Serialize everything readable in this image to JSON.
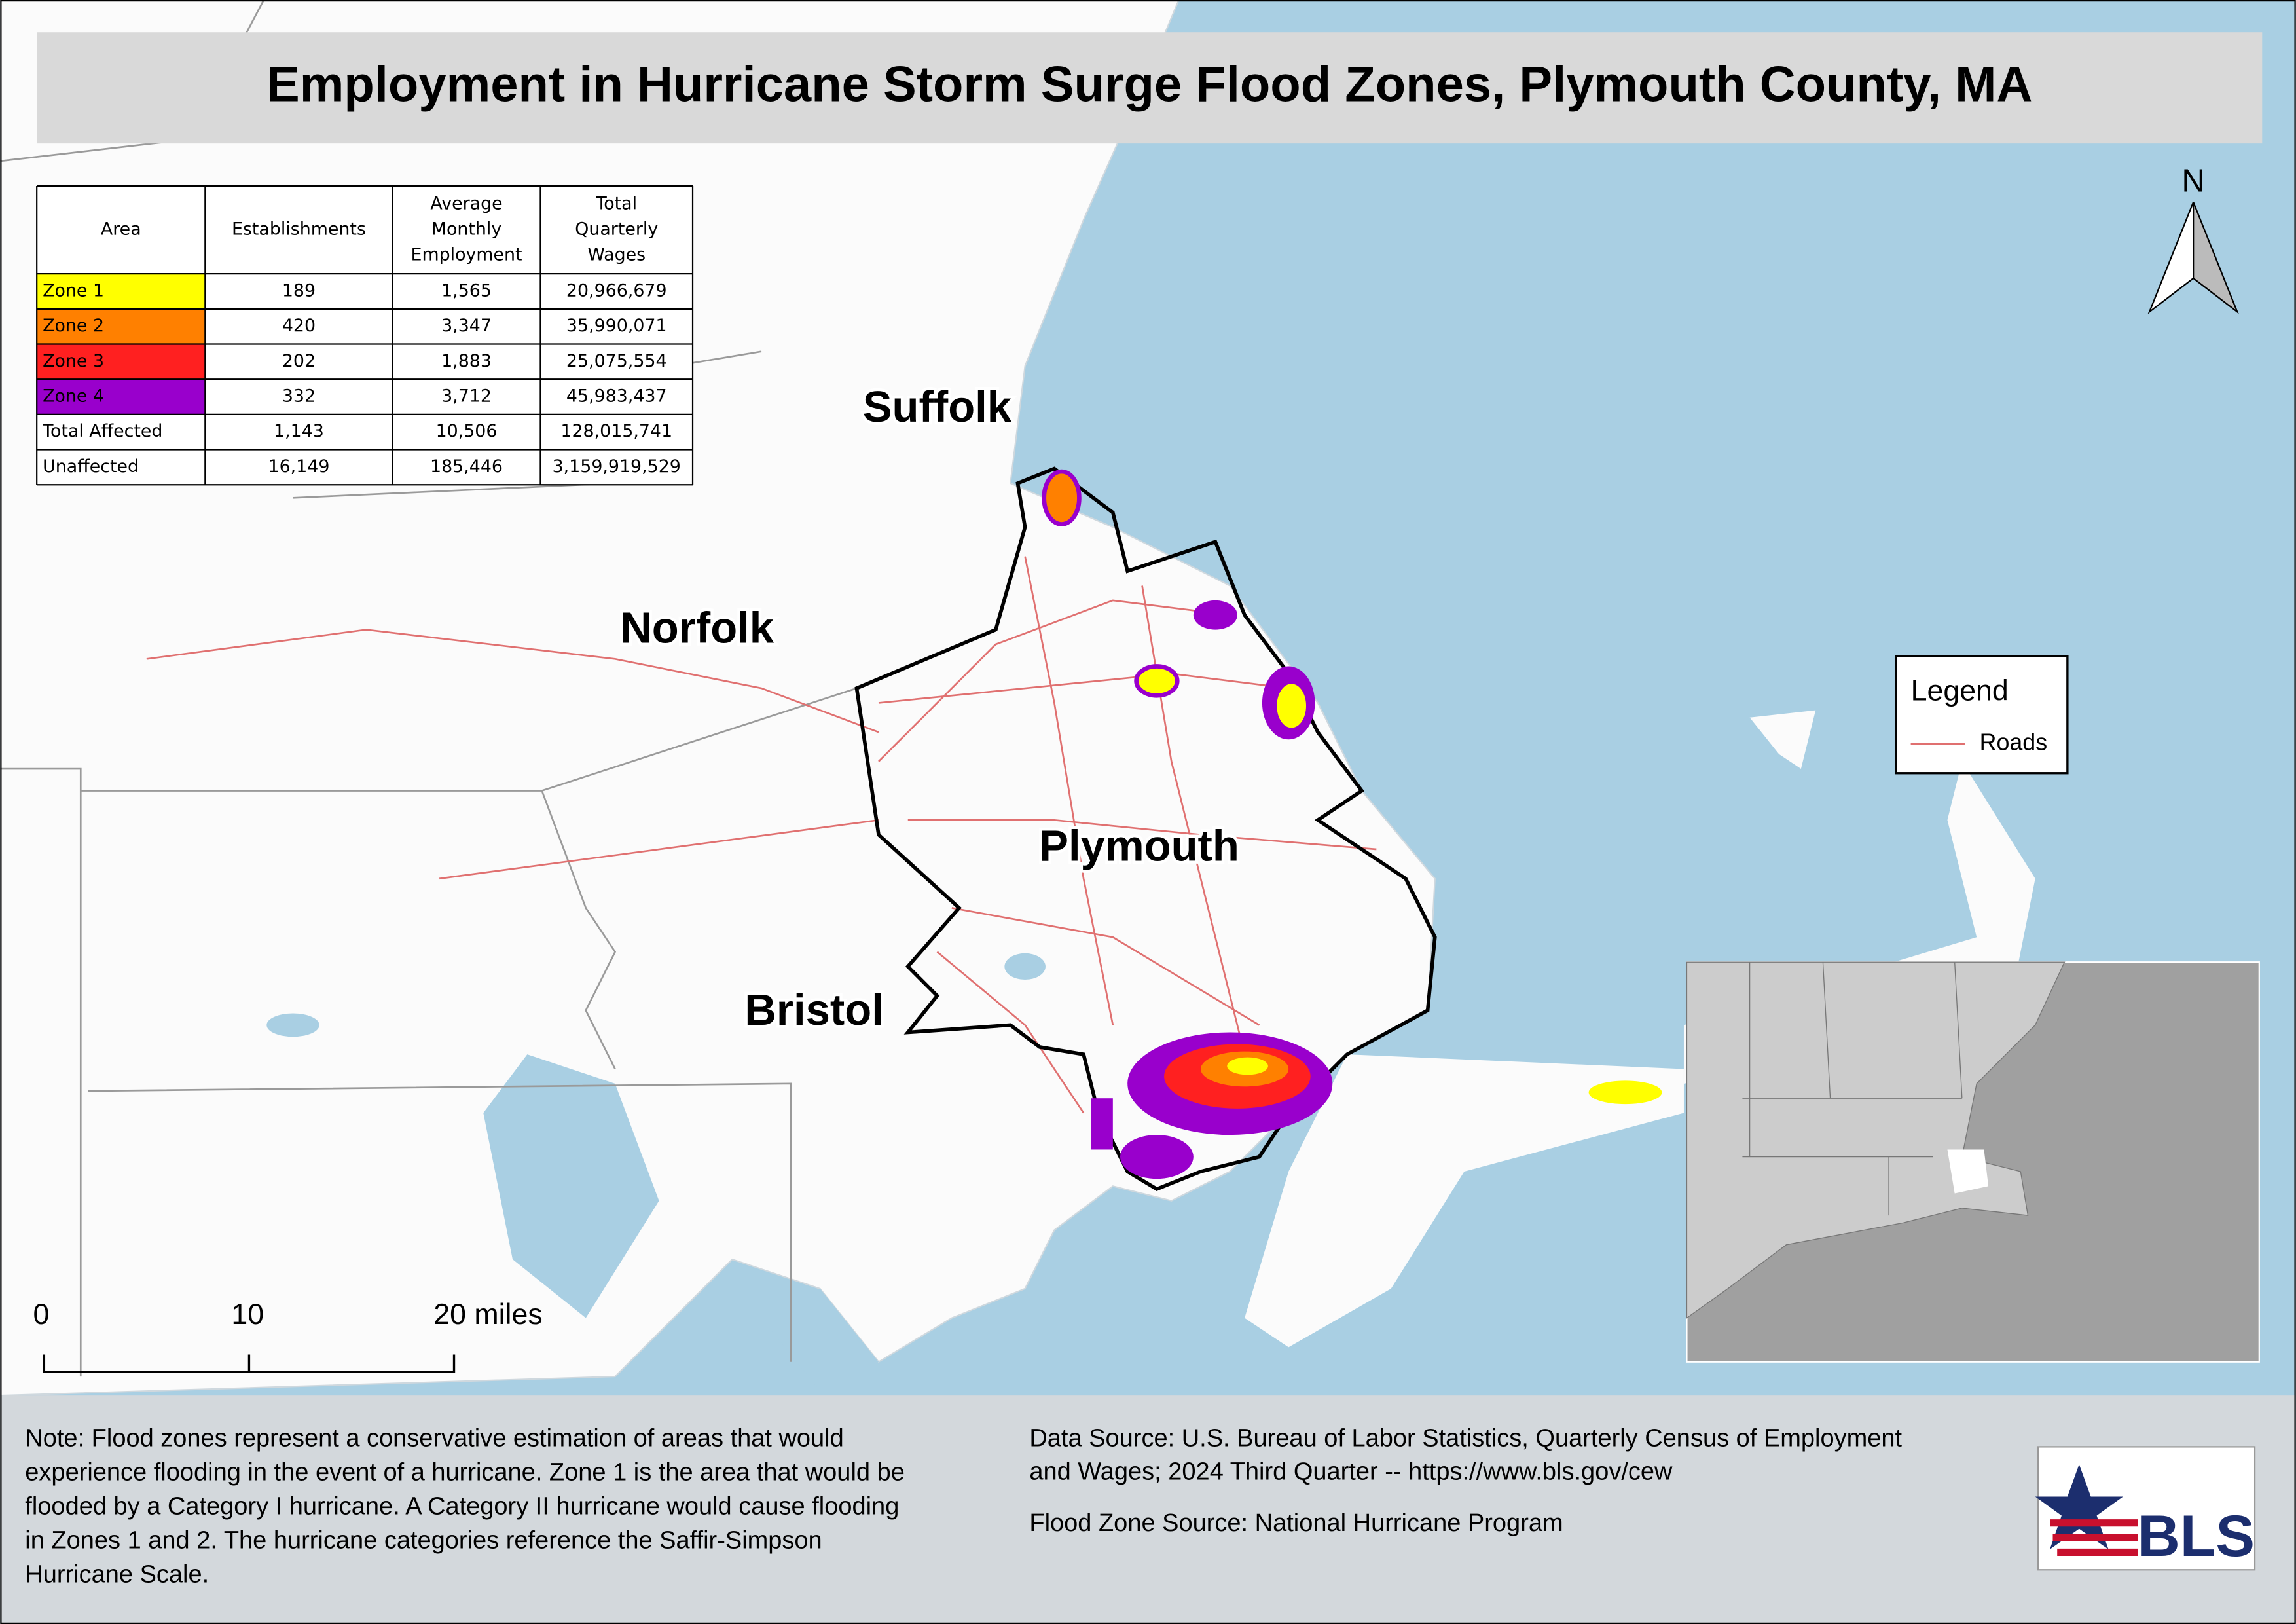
{
  "header": {
    "title": "Employment in Hurricane Storm Surge Flood Zones, Plymouth County, MA"
  },
  "table": {
    "header": [
      [
        "Area"
      ],
      [
        "Establishments"
      ],
      [
        "Average",
        "Monthly",
        "Employment"
      ],
      [
        "Total",
        "Quarterly",
        "Wages"
      ]
    ],
    "rows": [
      {
        "color": "#ffff00",
        "cells": [
          "Zone 1",
          "189",
          "1,565",
          "20,966,679"
        ]
      },
      {
        "color": "#ff8000",
        "cells": [
          "Zone 2",
          "420",
          "3,347",
          "35,990,071"
        ]
      },
      {
        "color": "#ff2020",
        "cells": [
          "Zone 3",
          "202",
          "1,883",
          "25,075,554"
        ]
      },
      {
        "color": "#9900cc",
        "cells": [
          "Zone 4",
          "332",
          "3,712",
          "45,983,437"
        ]
      },
      {
        "color": "#ffffff",
        "cells": [
          "Total Affected",
          "1,143",
          "10,506",
          "128,015,741"
        ]
      },
      {
        "color": "#ffffff",
        "cells": [
          "Unaffected",
          "16,149",
          "185,446",
          "3,159,919,529"
        ]
      }
    ]
  },
  "map": {
    "labels": [
      "Suffolk",
      "Norfolk",
      "Plymouth",
      "Bristol"
    ],
    "north": "N"
  },
  "legend": {
    "title": "Legend",
    "items": [
      {
        "label": "Roads",
        "color": "#e07070"
      }
    ]
  },
  "scale_bar": {
    "labels": [
      "0",
      "10",
      "20 miles"
    ]
  },
  "note": {
    "lines": [
      "Note: Flood zones represent a conservative estimation of areas that would",
      "experience flooding in the event of a hurricane. Zone 1 is the area that would be",
      "flooded by a Category I hurricane. A Category II hurricane would cause flooding",
      "in Zones 1 and 2. The hurricane categories reference the Saffir-Simpson",
      "Hurricane Scale."
    ]
  },
  "sources": {
    "lines": [
      "Data Source: U.S. Bureau of Labor Statistics, Quarterly Census of Employment",
      "and Wages; 2024 Third Quarter -- https://www.bls.gov/cew",
      "Flood Zone Source: National Hurricane Program"
    ]
  },
  "logo": {
    "text": "BLS"
  }
}
